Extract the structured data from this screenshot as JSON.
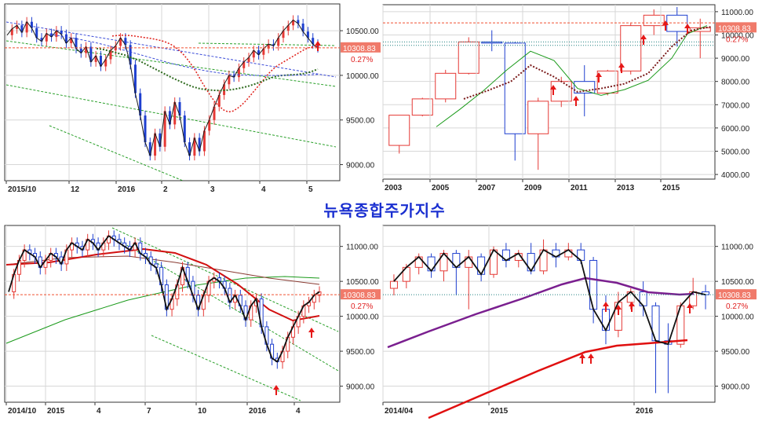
{
  "center_title": "뉴욕종합주가지수",
  "price_label": "10308.83",
  "pct_label": "0.27%",
  "chart_data": [
    {
      "type": "line",
      "timeframe": "daily",
      "x_ticks": [
        "2015/10",
        "12",
        "2016",
        "2",
        "3",
        "4",
        "5"
      ],
      "y_ticks": [
        "10500.00",
        "10000.00",
        "9500.00",
        "9000.00"
      ],
      "ylim": [
        8820,
        10800
      ],
      "last_price": 10308.83,
      "change_pct": "0.27%",
      "series": [
        {
          "values": [
            10450,
            10520,
            10560,
            10480,
            10600,
            10530,
            10420,
            10380,
            10470,
            10430,
            10500,
            10460,
            10360,
            10420,
            10300,
            10250,
            10320,
            10150,
            10220,
            10100,
            10180,
            10280,
            10330,
            10420,
            10340,
            10120,
            9800,
            9550,
            9250,
            9100,
            9350,
            9200,
            9600,
            9450,
            9700,
            9550,
            9250,
            9100,
            9300,
            9150,
            9380,
            9500,
            9650,
            9780,
            9900,
            10000,
            9980,
            10080,
            10150,
            10200,
            10280,
            10230,
            10300,
            10350,
            10330,
            10420,
            10500,
            10560,
            10620,
            10580,
            10490,
            10420,
            10350,
            10308
          ]
        },
        {
          "values": [
            10440,
            10445,
            10450,
            10448,
            10446,
            10440,
            10432,
            10425,
            10418,
            10410,
            10400,
            10388,
            10372,
            10350,
            10320,
            10280,
            10230,
            10170,
            10100,
            10020,
            9930,
            9850,
            9770,
            9700,
            9650,
            9610,
            9590,
            9600,
            9630,
            9670,
            9720,
            9780,
            9840,
            9900,
            9960,
            10020,
            10070,
            10110,
            10140,
            10170,
            10200,
            10230,
            10260,
            10290,
            10310,
            10320,
            10330
          ]
        },
        {
          "values": [
            10300,
            10290,
            10270,
            10250,
            10230,
            10200,
            10170,
            10130,
            10090,
            10050,
            10010,
            9970,
            9935,
            9900,
            9870,
            9850,
            9838,
            9832,
            9830,
            9835,
            9845,
            9860,
            9880,
            9905,
            9935,
            9965,
            9990,
            10000,
            10005,
            10010,
            10020,
            10040,
            10070
          ]
        },
        {
          "values": [
            10460,
            10440,
            10420,
            10395,
            10370,
            10340,
            10305,
            10270,
            10235,
            10200,
            10165,
            10130,
            10100,
            10075,
            10050,
            10030,
            10012,
            10005,
            10000,
            9998,
            9998,
            10000,
            10002,
            10005,
            10010
          ]
        }
      ]
    },
    {
      "type": "candlestick",
      "timeframe": "yearly",
      "x_ticks": [
        "2003",
        "2005",
        "2007",
        "2009",
        "2011",
        "2013",
        "2015"
      ],
      "y_ticks": [
        "11000.00",
        "10000.00",
        "9000.00",
        "8000.00",
        "7000.00",
        "6000.00",
        "5000.00",
        "4000.00"
      ],
      "ylim": [
        3800,
        11300
      ],
      "last_price": 10308.83,
      "change_pct": "0.27%",
      "candles": [
        {
          "open": 5250,
          "close": 6550,
          "high": 6550,
          "low": 4900
        },
        {
          "open": 6550,
          "close": 7250,
          "high": 7300,
          "low": 6500
        },
        {
          "open": 7250,
          "close": 8350,
          "high": 8500,
          "low": 7100
        },
        {
          "open": 8350,
          "close": 9700,
          "high": 9900,
          "low": 8300
        },
        {
          "open": 9700,
          "close": 9650,
          "high": 10200,
          "low": 9300
        },
        {
          "open": 9650,
          "close": 5750,
          "high": 9700,
          "low": 4600
        },
        {
          "open": 5750,
          "close": 7150,
          "high": 7300,
          "low": 4200
        },
        {
          "open": 7150,
          "close": 8000,
          "high": 8200,
          "low": 6900
        },
        {
          "open": 8000,
          "close": 7500,
          "high": 8700,
          "low": 6500
        },
        {
          "open": 7500,
          "close": 8450,
          "high": 8500,
          "low": 7400
        },
        {
          "open": 8450,
          "close": 10400,
          "high": 10500,
          "low": 8300
        },
        {
          "open": 10400,
          "close": 10850,
          "high": 11100,
          "low": 10000
        },
        {
          "open": 10850,
          "close": 10150,
          "high": 11200,
          "low": 9500
        },
        {
          "open": 10150,
          "close": 10309,
          "high": 10700,
          "low": 9000
        }
      ]
    },
    {
      "type": "candlestick",
      "timeframe": "weekly",
      "x_ticks": [
        "2014/10",
        "2015",
        "4",
        "7",
        "10",
        "2016",
        "4"
      ],
      "y_ticks": [
        "11000.00",
        "10500.00",
        "10000.00",
        "9500.00",
        "9000.00"
      ],
      "ylim": [
        8770,
        11300
      ],
      "last_price": 10308.83,
      "change_pct": "0.27%",
      "closes": [
        10350,
        10600,
        10800,
        10950,
        10900,
        10850,
        10700,
        10800,
        10900,
        10850,
        10750,
        10950,
        11050,
        11000,
        10950,
        11100,
        11050,
        10950,
        11050,
        11150,
        11100,
        11050,
        11000,
        10950,
        11050,
        10900,
        10850,
        10750,
        10700,
        10450,
        10100,
        10250,
        10450,
        10700,
        10500,
        10300,
        10100,
        10300,
        10500,
        10550,
        10500,
        10400,
        10200,
        10300,
        10150,
        9950,
        10150,
        10250,
        9850,
        9600,
        9400,
        9350,
        9500,
        9700,
        9850,
        10000,
        10150,
        10200,
        10300,
        10350
      ]
    },
    {
      "type": "candlestick",
      "timeframe": "monthly",
      "x_ticks": [
        "2014/04",
        "2015",
        "2016"
      ],
      "y_ticks": [
        "11000.00",
        "10500.00",
        "10000.00",
        "9500.00",
        "9000.00"
      ],
      "ylim": [
        8770,
        11300
      ],
      "last_price": 10308.83,
      "change_pct": "0.27%",
      "candles": [
        {
          "open": 10400,
          "close": 10500,
          "high": 10600,
          "low": 10300
        },
        {
          "open": 10500,
          "close": 10700,
          "high": 10750,
          "low": 10400
        },
        {
          "open": 10700,
          "close": 10850,
          "high": 10900,
          "low": 10600
        },
        {
          "open": 10850,
          "close": 10650,
          "high": 10900,
          "low": 10550
        },
        {
          "open": 10650,
          "close": 10900,
          "high": 10950,
          "low": 10500
        },
        {
          "open": 10900,
          "close": 10700,
          "high": 10950,
          "low": 10300
        },
        {
          "open": 10700,
          "close": 10850,
          "high": 10950,
          "low": 10100
        },
        {
          "open": 10850,
          "close": 10600,
          "high": 10900,
          "low": 10500
        },
        {
          "open": 10600,
          "close": 10950,
          "high": 11000,
          "low": 10550
        },
        {
          "open": 10950,
          "close": 10800,
          "high": 11050,
          "low": 10700
        },
        {
          "open": 10800,
          "close": 10900,
          "high": 10950,
          "low": 10700
        },
        {
          "open": 10900,
          "close": 10650,
          "high": 11050,
          "low": 10600
        },
        {
          "open": 10650,
          "close": 10950,
          "high": 11100,
          "low": 10600
        },
        {
          "open": 10950,
          "close": 10850,
          "high": 11050,
          "low": 10700
        },
        {
          "open": 10850,
          "close": 10950,
          "high": 11050,
          "low": 10800
        },
        {
          "open": 10950,
          "close": 10800,
          "high": 11050,
          "low": 10750
        },
        {
          "open": 10800,
          "close": 10100,
          "high": 10850,
          "low": 9900
        },
        {
          "open": 10100,
          "close": 9800,
          "high": 10300,
          "low": 9600
        },
        {
          "open": 9800,
          "close": 10200,
          "high": 10350,
          "low": 9700
        },
        {
          "open": 10200,
          "close": 10350,
          "high": 10400,
          "low": 10100
        },
        {
          "open": 10350,
          "close": 10150,
          "high": 10500,
          "low": 10000
        },
        {
          "open": 10150,
          "close": 9650,
          "high": 10200,
          "low": 8900
        },
        {
          "open": 9650,
          "close": 9600,
          "high": 9900,
          "low": 8900
        },
        {
          "open": 9600,
          "close": 10150,
          "high": 10200,
          "low": 9550
        },
        {
          "open": 10150,
          "close": 10350,
          "high": 10550,
          "low": 10100
        },
        {
          "open": 10350,
          "close": 10309,
          "high": 10450,
          "low": 10100
        }
      ]
    }
  ],
  "colors": {
    "up": "#e53935",
    "down": "#1e3fcf",
    "ma_red": "#e0201a",
    "ma_green": "#1a9a1a",
    "ma_dark_green": "#2f6b1f",
    "ma_purple": "#7a1f8f",
    "ma_brown": "#8a3b32",
    "trend_green": "#2aa02a",
    "trend_blue": "#3a4bd8",
    "price_line": "#f05030",
    "price_box": "#f07a6a",
    "grid": "#d7d7d7",
    "axis": "#333333",
    "arrow": "#e61818"
  }
}
